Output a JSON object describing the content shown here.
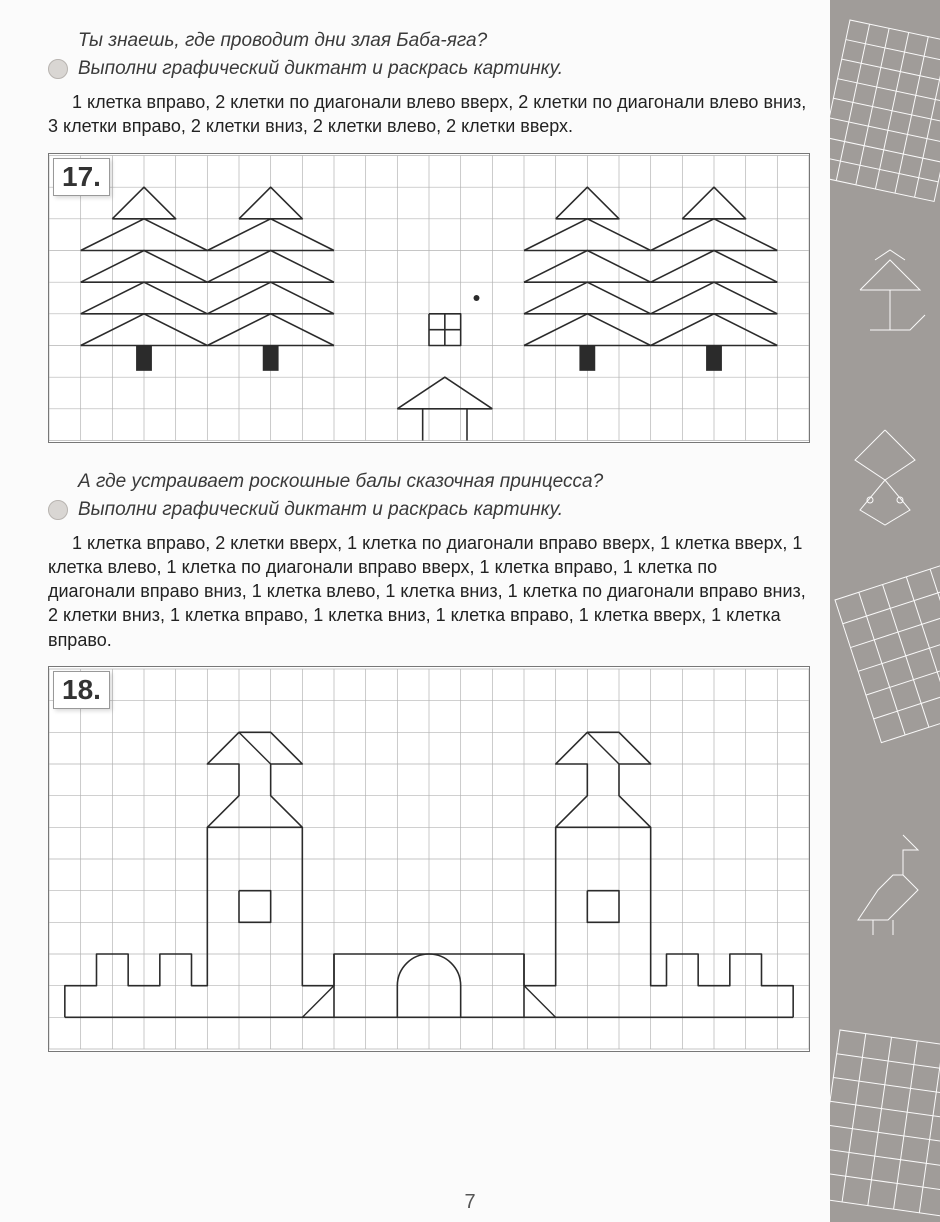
{
  "page_number": "7",
  "ex17": {
    "number": "17.",
    "question": "Ты знаешь, где проводит дни злая Баба-яга?",
    "task": "Выполни графический диктант и раскрась картинку.",
    "instructions": "1 клетка вправо, 2 клетки по диагонали влево вверх, 2 клетки по диагонали влево вниз, 3 клетки вправо, 2 клетки вниз, 2 клетки влево, 2 клетки вверх.",
    "grid": {
      "cols": 24,
      "rows": 9,
      "cell": 32,
      "stroke": "#b3b3b3"
    },
    "line_color": "#2b2b2b",
    "line_width": 1.6,
    "trees": [
      {
        "base_col": 3,
        "base_row": 6
      },
      {
        "base_col": 7,
        "base_row": 6
      },
      {
        "base_col": 17,
        "base_row": 6
      },
      {
        "base_col": 21,
        "base_row": 6
      }
    ],
    "start_dot": {
      "col": 13.5,
      "row": 4.5
    },
    "hut": {
      "col": 12,
      "row": 5
    }
  },
  "ex18": {
    "number": "18.",
    "question": "А где устраивает роскошные балы сказочная принцесса?",
    "task": "Выполни графический диктант и раскрась картинку.",
    "instructions": "1 клетка вправо, 2 клетки вверх, 1 клетка по диагонали вправо вверх, 1 клетка вверх, 1 клетка влево, 1 клетка по диагонали вправо вверх, 1 клетка вправо, 1 клетка по диагонали вправо вниз, 1 клетка влево, 1 клетка вниз, 1 клетка по диагонали вправо вниз, 2 клетки вниз, 1 клетка вправо, 1 клетка вниз, 1 клетка вправо, 1 клетка вверх, 1 клетка вправо.",
    "grid": {
      "cols": 24,
      "rows": 12,
      "cell": 32,
      "stroke": "#b3b3b3"
    },
    "line_color": "#2b2b2b",
    "line_width": 1.6
  },
  "colors": {
    "paper": "#fbfbfb",
    "panel": "#ffffff",
    "side": "#a09c99",
    "side_line": "#ffffff"
  }
}
